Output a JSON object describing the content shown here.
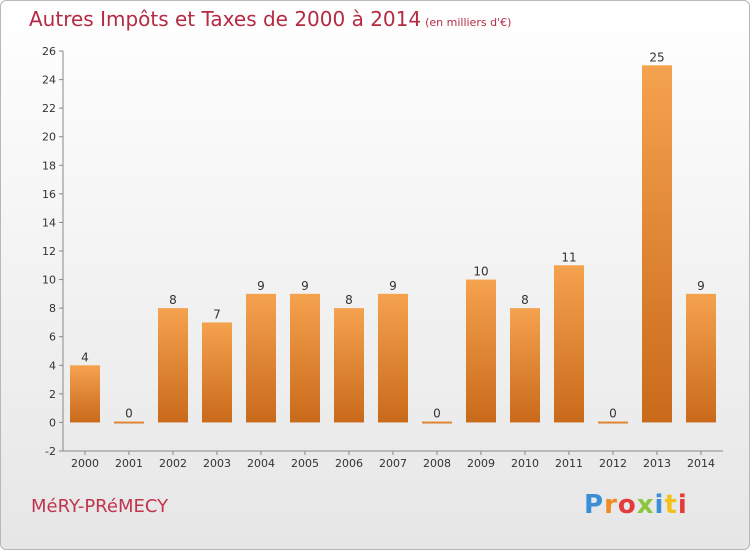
{
  "title": "Autres Impôts et Taxes de 2000 à 2014",
  "subtitle": "(en milliers d'€)",
  "commune": "MéRY-PRéMECY",
  "logo": "Proxiti",
  "colors": {
    "title": "#b52a43",
    "bar_light": "#f5a24e",
    "bar_dark": "#c96a1a",
    "label": "#333333"
  },
  "chart_data": {
    "type": "bar",
    "title": "Autres Impôts et Taxes de 2000 à 2014",
    "subtitle": "(en milliers d'€)",
    "categories": [
      "2000",
      "2001",
      "2002",
      "2003",
      "2004",
      "2005",
      "2006",
      "2007",
      "2008",
      "2009",
      "2010",
      "2011",
      "2012",
      "2013",
      "2014"
    ],
    "values": [
      4,
      0,
      8,
      7,
      9,
      9,
      8,
      9,
      0,
      10,
      8,
      11,
      0,
      25,
      9
    ],
    "data_labels": [
      "4",
      "0",
      "8",
      "7",
      "9",
      "9",
      "8",
      "9",
      "0",
      "10",
      "8",
      "11",
      "0",
      "25",
      "9"
    ],
    "ylim": [
      -2,
      26
    ],
    "yticks": [
      -2,
      0,
      2,
      4,
      6,
      8,
      10,
      12,
      14,
      16,
      18,
      20,
      22,
      24,
      26
    ],
    "ytick_labels": [
      "-2",
      "0",
      "2",
      "4",
      "6",
      "8",
      "10",
      "12",
      "14",
      "16",
      "18",
      "20",
      "22",
      "24",
      "26"
    ],
    "grid": false,
    "legend": "none"
  }
}
